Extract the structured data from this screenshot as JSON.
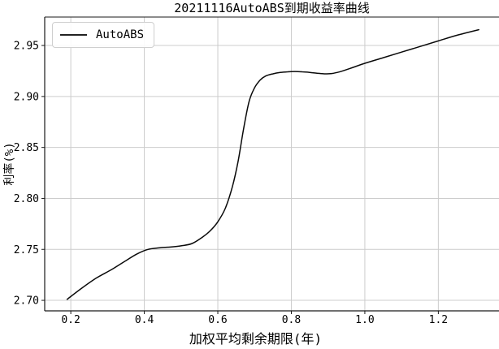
{
  "title": "20211116AutoABS到期收益率曲线",
  "legend": {
    "label": "AutoABS"
  },
  "colors": {
    "line": "#0a0a0a",
    "grid": "#cccccc",
    "spine": "#1a1a1a",
    "tick_label": "#000000",
    "background": "#ffffff"
  },
  "chart_data": {
    "type": "line",
    "title": "20211116AutoABS到期收益率曲线",
    "xlabel": "加权平均剩余期限(年)",
    "ylabel": "利率(%)",
    "xlim": [
      0.129,
      1.365
    ],
    "ylim": [
      2.6897,
      2.9779
    ],
    "xticks": [
      0.2,
      0.4,
      0.6,
      0.8,
      1.0,
      1.2
    ],
    "xtick_labels": [
      "0.2",
      "0.4",
      "0.6",
      "0.8",
      "1.0",
      "1.2"
    ],
    "yticks": [
      2.7,
      2.75,
      2.8,
      2.85,
      2.9,
      2.95
    ],
    "ytick_labels": [
      "2.70",
      "2.75",
      "2.80",
      "2.85",
      "2.90",
      "2.95"
    ],
    "grid": true,
    "legend_position": "upper-left",
    "series": [
      {
        "name": "AutoABS",
        "color": "#0a0a0a",
        "x": [
          0.19,
          0.23,
          0.27,
          0.31,
          0.35,
          0.38,
          0.41,
          0.44,
          0.47,
          0.5,
          0.53,
          0.56,
          0.58,
          0.6,
          0.62,
          0.64,
          0.655,
          0.67,
          0.685,
          0.7,
          0.715,
          0.73,
          0.75,
          0.77,
          0.79,
          0.81,
          0.83,
          0.85,
          0.87,
          0.89,
          0.91,
          0.93,
          0.96,
          1.0,
          1.05,
          1.1,
          1.15,
          1.2,
          1.25,
          1.31
        ],
        "y": [
          2.701,
          2.712,
          2.722,
          2.73,
          2.739,
          2.7455,
          2.75,
          2.7515,
          2.7523,
          2.7535,
          2.7558,
          2.7625,
          2.7685,
          2.777,
          2.79,
          2.812,
          2.836,
          2.868,
          2.895,
          2.9085,
          2.916,
          2.92,
          2.9222,
          2.9235,
          2.9242,
          2.9245,
          2.9242,
          2.9236,
          2.9228,
          2.9222,
          2.9225,
          2.924,
          2.9275,
          2.9325,
          2.938,
          2.9435,
          2.949,
          2.9545,
          2.96,
          2.9655
        ]
      }
    ]
  }
}
